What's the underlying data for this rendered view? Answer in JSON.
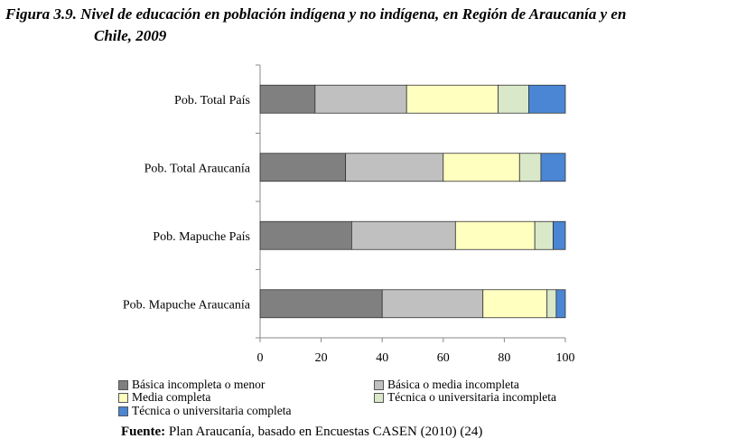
{
  "figure": {
    "title_line1": "Figura 3.9. Nivel de educación en población indígena y no indígena, en Región de Araucanía y en",
    "title_line2": "Chile, 2009"
  },
  "source": {
    "label": "Fuente:",
    "text": " Plan Araucanía, basado en Encuestas CASEN (2010) (24)"
  },
  "chart_data": {
    "type": "bar",
    "orientation": "horizontal",
    "stacked": true,
    "categories": [
      "Pob. Total País",
      "Pob. Total Araucanía",
      "Pob. Mapuche País",
      "Pob. Mapuche Araucanía"
    ],
    "series": [
      {
        "name": "Básica incompleta o menor",
        "color": "#808080",
        "values": [
          18,
          28,
          30,
          40
        ]
      },
      {
        "name": "Básica o media incompleta",
        "color": "#c0c0c0",
        "values": [
          30,
          32,
          34,
          33
        ]
      },
      {
        "name": "Media completa",
        "color": "#ffffc0",
        "values": [
          30,
          25,
          26,
          21
        ]
      },
      {
        "name": "Técnica o universitaria incompleta",
        "color": "#d9e8c8",
        "values": [
          10,
          7,
          6,
          3
        ]
      },
      {
        "name": "Técnica o universitaria completa",
        "color": "#4a86d4",
        "values": [
          12,
          8,
          4,
          3
        ]
      }
    ],
    "xlim": [
      0,
      100
    ],
    "xticks": [
      0,
      20,
      40,
      60,
      80,
      100
    ],
    "legend": "bottom",
    "grid": false
  }
}
